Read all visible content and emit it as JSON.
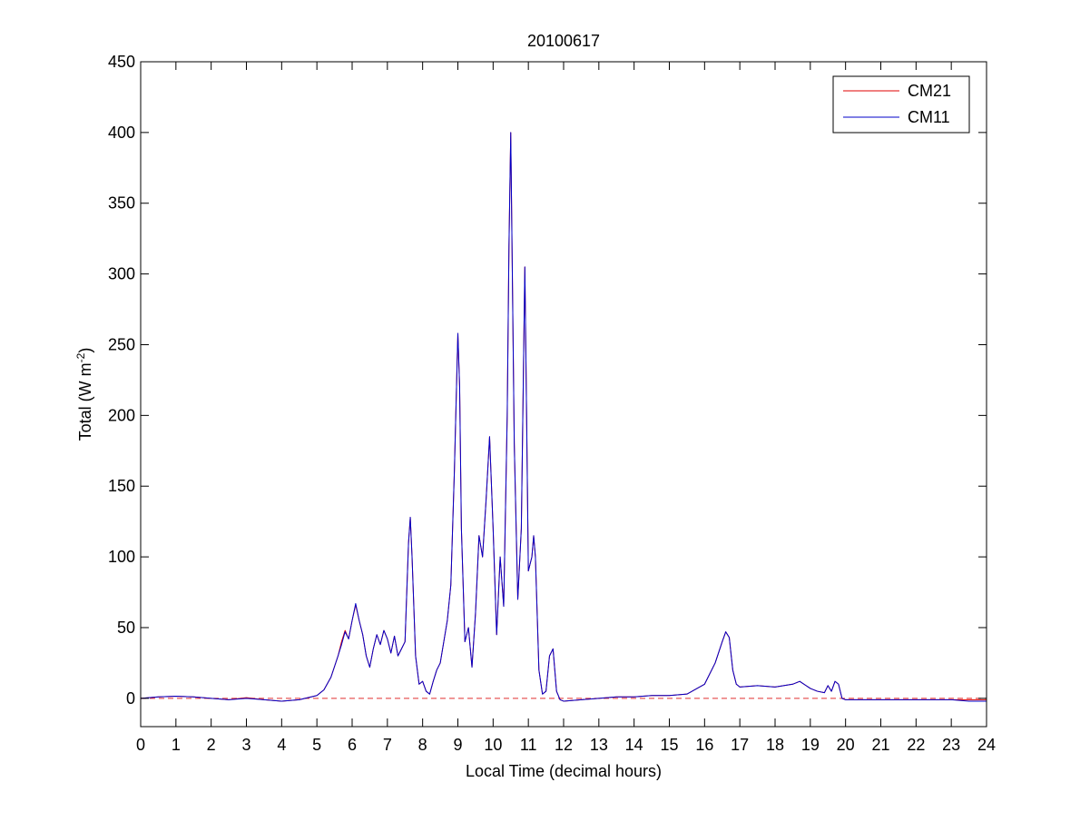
{
  "chart_data": {
    "type": "line",
    "title": "20100617",
    "xlabel": "Local Time (decimal hours)",
    "ylabel": {
      "text": "Total (W m",
      "superscript": "-2",
      "suffix": ")"
    },
    "xlim": [
      0,
      24
    ],
    "xticks": [
      0,
      1,
      2,
      3,
      4,
      5,
      6,
      7,
      8,
      9,
      10,
      11,
      12,
      13,
      14,
      15,
      16,
      17,
      18,
      19,
      20,
      21,
      22,
      23,
      24
    ],
    "ylim": [
      -20,
      450
    ],
    "yticks": [
      0,
      50,
      100,
      150,
      200,
      250,
      300,
      350,
      400,
      450
    ],
    "reference_line": {
      "value": 0,
      "color": "#e03030",
      "dashed": true
    },
    "legend": "upper right",
    "x": [
      0,
      0.5,
      1,
      1.5,
      2,
      2.5,
      3,
      3.5,
      4,
      4.5,
      5,
      5.2,
      5.4,
      5.6,
      5.7,
      5.8,
      5.9,
      6,
      6.1,
      6.2,
      6.3,
      6.4,
      6.5,
      6.6,
      6.7,
      6.8,
      6.9,
      7,
      7.1,
      7.2,
      7.3,
      7.4,
      7.5,
      7.6,
      7.65,
      7.7,
      7.8,
      7.9,
      8,
      8.1,
      8.2,
      8.3,
      8.4,
      8.5,
      8.6,
      8.7,
      8.8,
      8.9,
      9,
      9.05,
      9.1,
      9.2,
      9.3,
      9.4,
      9.5,
      9.6,
      9.7,
      9.8,
      9.9,
      10,
      10.1,
      10.2,
      10.3,
      10.4,
      10.45,
      10.5,
      10.55,
      10.6,
      10.7,
      10.8,
      10.9,
      10.95,
      11,
      11.1,
      11.15,
      11.2,
      11.3,
      11.4,
      11.5,
      11.6,
      11.7,
      11.8,
      11.9,
      12,
      12.5,
      13,
      13.5,
      14,
      14.5,
      15,
      15.5,
      16,
      16.3,
      16.5,
      16.6,
      16.7,
      16.8,
      16.9,
      17,
      17.5,
      18,
      18.5,
      18.7,
      19,
      19.2,
      19.4,
      19.5,
      19.6,
      19.7,
      19.8,
      19.9,
      20,
      20.5,
      21,
      22,
      23,
      23.5,
      24
    ],
    "series": [
      {
        "name": "CM21",
        "color": "#e00000",
        "values": [
          0,
          1,
          1.5,
          1,
          0,
          -1,
          0.5,
          -1,
          -2,
          -1,
          2,
          6,
          15,
          30,
          40,
          48,
          42,
          55,
          66,
          55,
          45,
          30,
          22,
          35,
          45,
          38,
          48,
          42,
          32,
          44,
          30,
          35,
          40,
          110,
          128,
          100,
          30,
          10,
          12,
          5,
          3,
          12,
          20,
          25,
          40,
          55,
          80,
          160,
          258,
          220,
          120,
          40,
          50,
          22,
          60,
          115,
          100,
          140,
          185,
          120,
          45,
          100,
          65,
          200,
          320,
          400,
          290,
          180,
          70,
          120,
          305,
          200,
          90,
          100,
          115,
          100,
          20,
          3,
          5,
          30,
          35,
          5,
          -1,
          -2,
          -1,
          0,
          1,
          1,
          2,
          2,
          3,
          10,
          25,
          40,
          47,
          43,
          20,
          10,
          8,
          9,
          8,
          10,
          12,
          7,
          5,
          4,
          9,
          5,
          12,
          10,
          0,
          -1,
          -1,
          -1,
          -1,
          -1,
          -1,
          -1
        ]
      },
      {
        "name": "CM11",
        "color": "#0000c8",
        "values": [
          0,
          1,
          1.5,
          1,
          0,
          -1,
          0,
          -1,
          -2,
          -1,
          2,
          6,
          15,
          30,
          38,
          47,
          42,
          55,
          67,
          55,
          45,
          30,
          22,
          35,
          45,
          38,
          48,
          42,
          32,
          44,
          30,
          35,
          40,
          110,
          128,
          100,
          30,
          10,
          12,
          5,
          3,
          12,
          20,
          25,
          40,
          55,
          80,
          160,
          258,
          220,
          120,
          40,
          50,
          22,
          60,
          115,
          100,
          140,
          185,
          120,
          45,
          100,
          65,
          200,
          320,
          400,
          290,
          180,
          70,
          120,
          305,
          200,
          90,
          100,
          115,
          100,
          20,
          3,
          5,
          30,
          35,
          5,
          -1,
          -2,
          -1,
          0,
          1,
          1,
          2,
          2,
          3,
          10,
          25,
          40,
          47,
          43,
          20,
          10,
          8,
          9,
          8,
          10,
          12,
          7,
          5,
          4,
          9,
          5,
          12,
          10,
          0,
          -1,
          -1,
          -1,
          -1,
          -1,
          -2,
          -2
        ]
      }
    ]
  }
}
